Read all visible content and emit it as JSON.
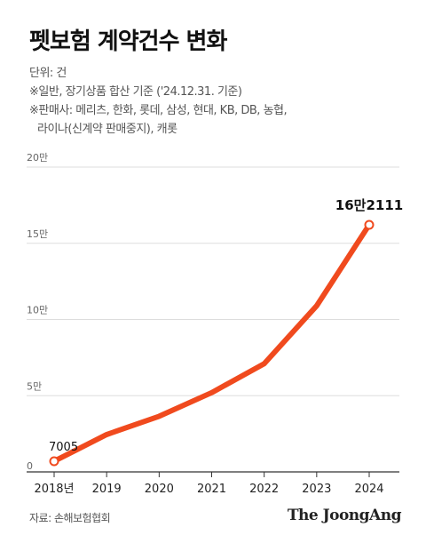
{
  "title": "펫보험 계약건수 변화",
  "notes": {
    "unit": "단위: 건",
    "note1": "※일반, 장기상품 합산 기준 ('24.12.31. 기준)",
    "note2_line1": "※판매사: 메리츠, 한화, 롯데, 삼성, 현대, KB, DB, 농협,",
    "note2_line2": "라이나(신계약 판매중지), 캐롯"
  },
  "source": "자료: 손해보험협회",
  "brand": "The JoongAng",
  "colors": {
    "line": "#f04a1e",
    "grid": "#dddddd",
    "axis": "#333333"
  },
  "chart_data": {
    "type": "line",
    "categories": [
      "2018년",
      "2019",
      "2020",
      "2021",
      "2022",
      "2023",
      "2024"
    ],
    "series": [
      {
        "values": [
          7005,
          24500,
          36500,
          52000,
          71000,
          109000,
          162111
        ]
      }
    ],
    "ylim": [
      0,
      200000
    ],
    "y_ticks": [
      0,
      50000,
      100000,
      150000,
      200000
    ],
    "y_tick_labels": [
      "0",
      "5만",
      "10만",
      "15만",
      "20만"
    ],
    "annotations": [
      {
        "index": 0,
        "label": "7005"
      },
      {
        "index": 6,
        "label": "16만2111"
      }
    ],
    "grid": true
  }
}
